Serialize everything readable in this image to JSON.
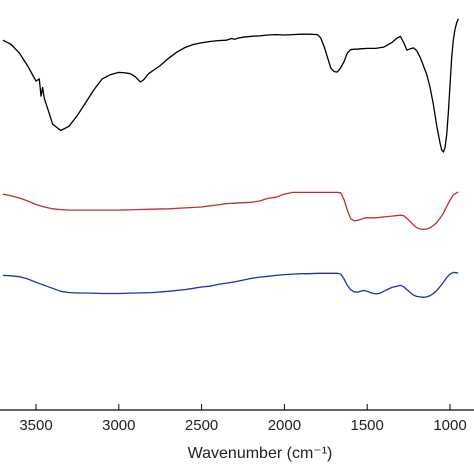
{
  "chart_data": {
    "type": "line",
    "title": "",
    "xlabel": "Wavenumber (cm⁻¹)",
    "ylabel": "",
    "x_reversed": true,
    "xlim": [
      3700,
      950
    ],
    "ylim": [
      0,
      100
    ],
    "x_ticks": [
      {
        "value": 3500,
        "label": "3500"
      },
      {
        "value": 3000,
        "label": "3000"
      },
      {
        "value": 2500,
        "label": "2500"
      },
      {
        "value": 2000,
        "label": "2000"
      },
      {
        "value": 1500,
        "label": "1500"
      },
      {
        "value": 1000,
        "label": "1000"
      }
    ],
    "grid": false,
    "legend": "none",
    "series": [
      {
        "color": "#000000",
        "x": [
          3700,
          3650,
          3600,
          3550,
          3500,
          3480,
          3470,
          3460,
          3450,
          3420,
          3400,
          3350,
          3300,
          3250,
          3200,
          3150,
          3100,
          3050,
          3000,
          2960,
          2930,
          2900,
          2870,
          2850,
          2820,
          2780,
          2750,
          2700,
          2650,
          2600,
          2550,
          2500,
          2450,
          2400,
          2350,
          2320,
          2300,
          2280,
          2250,
          2200,
          2150,
          2100,
          2050,
          2000,
          1950,
          1900,
          1850,
          1800,
          1780,
          1760,
          1740,
          1720,
          1700,
          1680,
          1660,
          1640,
          1620,
          1600,
          1580,
          1560,
          1540,
          1500,
          1450,
          1400,
          1350,
          1320,
          1300,
          1280,
          1260,
          1240,
          1220,
          1200,
          1180,
          1160,
          1140,
          1120,
          1100,
          1080,
          1060,
          1050,
          1040,
          1030,
          1020,
          1010,
          1000,
          990,
          980,
          970,
          960,
          950
        ],
        "y": [
          86,
          85,
          83,
          80,
          76.5,
          77,
          73,
          75,
          72.5,
          69,
          66.5,
          65,
          66,
          68.5,
          71.5,
          74.5,
          77,
          78,
          78.5,
          78.4,
          78.2,
          77.5,
          76.3,
          76.8,
          78.2,
          79.3,
          80.1,
          81.8,
          83.2,
          84.3,
          85,
          85.4,
          85.7,
          85.9,
          86,
          86.4,
          86.2,
          86.5,
          86.7,
          86.9,
          87,
          87.2,
          87.3,
          87.2,
          87.3,
          87.4,
          87.4,
          87.3,
          86.5,
          84.5,
          82,
          79.5,
          78.7,
          78.6,
          79.6,
          81,
          83,
          83.8,
          83.9,
          83.9,
          84,
          84.1,
          84.1,
          84.4,
          85.5,
          86.5,
          86.9,
          85.5,
          83.7,
          84,
          84.2,
          83.5,
          82,
          80,
          78,
          75,
          71,
          66,
          62,
          60.5,
          60,
          61,
          64,
          69,
          75.5,
          82,
          86,
          88.5,
          90,
          91
        ]
      },
      {
        "color": "#c0302c",
        "x": [
          3700,
          3650,
          3600,
          3550,
          3500,
          3450,
          3400,
          3350,
          3300,
          3200,
          3100,
          3000,
          2900,
          2800,
          2700,
          2600,
          2500,
          2450,
          2400,
          2350,
          2300,
          2250,
          2200,
          2150,
          2100,
          2050,
          2000,
          1950,
          1900,
          1850,
          1800,
          1750,
          1700,
          1680,
          1660,
          1640,
          1620,
          1600,
          1580,
          1560,
          1540,
          1520,
          1500,
          1450,
          1400,
          1350,
          1300,
          1280,
          1250,
          1220,
          1200,
          1180,
          1160,
          1140,
          1120,
          1100,
          1080,
          1060,
          1040,
          1020,
          1000,
          980,
          960,
          950
        ],
        "y": [
          50.2,
          49.8,
          49.3,
          48.6,
          47.8,
          47.2,
          46.8,
          46.6,
          46.5,
          46.5,
          46.5,
          46.5,
          46.6,
          46.7,
          46.8,
          47,
          47.2,
          47.5,
          47.7,
          48,
          48.1,
          48.2,
          48.3,
          48.6,
          49.2,
          49.5,
          50.2,
          50.6,
          50.6,
          50.6,
          50.6,
          50.6,
          50.6,
          50.6,
          50.5,
          49,
          46.5,
          44.5,
          44,
          44.1,
          44.3,
          44.6,
          44.7,
          44.7,
          44.9,
          45.1,
          45.3,
          45.2,
          44.2,
          43,
          42.4,
          42.1,
          42,
          42.1,
          42.4,
          42.9,
          43.6,
          44.6,
          45.8,
          47.3,
          48.8,
          50,
          50.5,
          50.7
        ]
      },
      {
        "color": "#1f2fae",
        "x": [
          3700,
          3650,
          3600,
          3550,
          3500,
          3450,
          3400,
          3350,
          3300,
          3250,
          3200,
          3100,
          3000,
          2900,
          2800,
          2700,
          2600,
          2550,
          2500,
          2450,
          2400,
          2350,
          2300,
          2250,
          2200,
          2150,
          2100,
          2050,
          2000,
          1950,
          1900,
          1850,
          1800,
          1750,
          1700,
          1680,
          1660,
          1640,
          1620,
          1600,
          1580,
          1560,
          1540,
          1520,
          1500,
          1480,
          1460,
          1440,
          1420,
          1400,
          1380,
          1350,
          1320,
          1300,
          1280,
          1260,
          1240,
          1220,
          1200,
          1180,
          1160,
          1140,
          1120,
          1100,
          1080,
          1060,
          1040,
          1020,
          1000,
          980,
          960,
          950
        ],
        "y": [
          31.3,
          31.2,
          31,
          30.5,
          29.7,
          29,
          28.3,
          27.6,
          27.3,
          27.2,
          27.2,
          27.1,
          27.1,
          27.2,
          27.3,
          27.6,
          28,
          28.3,
          28.6,
          28.8,
          29.2,
          29.5,
          29.8,
          30.2,
          30.6,
          30.9,
          31.1,
          31.3,
          31.5,
          31.6,
          31.7,
          31.7,
          31.8,
          31.8,
          31.8,
          31.8,
          31.6,
          30.5,
          29,
          28,
          27.5,
          27.4,
          27.6,
          27.8,
          27.6,
          27.3,
          27.1,
          27,
          27.2,
          27.6,
          28,
          28.5,
          28.8,
          29,
          28.7,
          28,
          27.3,
          26.7,
          26.4,
          26.3,
          26.2,
          26.3,
          26.6,
          27.1,
          27.8,
          28.7,
          29.7,
          30.8,
          31.6,
          32,
          31.9,
          31.8
        ]
      }
    ]
  }
}
